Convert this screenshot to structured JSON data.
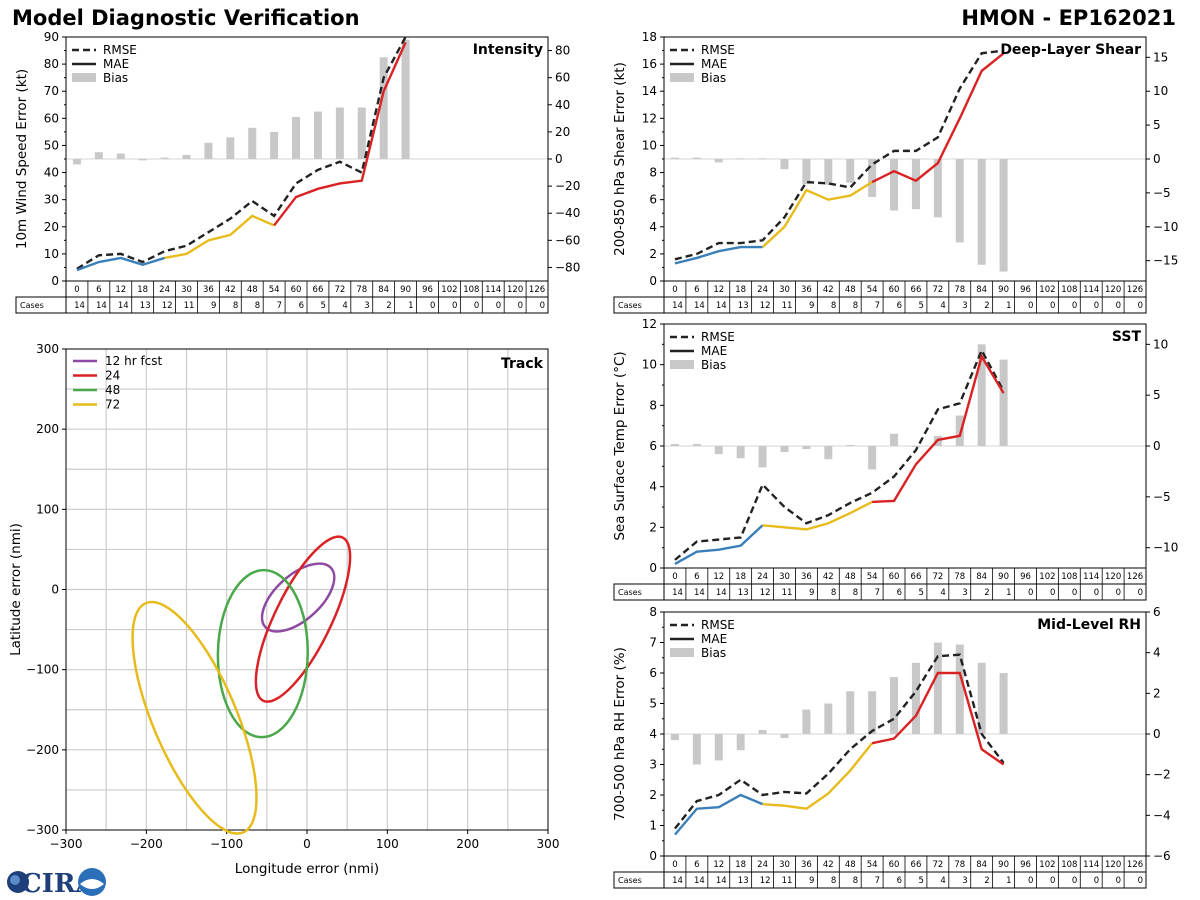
{
  "header": {
    "title": "Model Diagnostic Verification",
    "storm": "HMON - EP162021"
  },
  "logo": {
    "text": "CIRA"
  },
  "legend_labels": {
    "rmse": "RMSE",
    "mae": "MAE",
    "bias": "Bias"
  },
  "colors": {
    "blue": "#3a7fba",
    "yellow": "#e8bb1c",
    "red": "#d92224",
    "rmse": "#222222",
    "bias": "#c8c8c8",
    "grid": "#cccccc",
    "purple": "#8e4aa2",
    "green": "#4aa84a"
  },
  "lead_times": [
    0,
    6,
    12,
    18,
    24,
    30,
    36,
    42,
    48,
    54,
    60,
    66,
    72,
    78,
    84,
    90,
    96,
    102,
    108,
    114,
    120,
    126
  ],
  "cases": [
    14,
    14,
    14,
    13,
    12,
    11,
    9,
    8,
    8,
    7,
    6,
    5,
    4,
    3,
    2,
    1,
    0,
    0,
    0,
    0,
    0,
    0
  ],
  "cases_label": "Cases",
  "chart_data": [
    {
      "type": "line",
      "id": "intensity",
      "title": "Intensity",
      "ylabel": "10m Wind Speed Error (kt)",
      "ylim": [
        0,
        90
      ],
      "yticks": [
        0,
        10,
        20,
        30,
        40,
        50,
        60,
        70,
        80,
        90
      ],
      "y2lim": [
        -90,
        90
      ],
      "y2ticks": [
        -80,
        -60,
        -40,
        -20,
        0,
        20,
        40,
        60,
        80
      ],
      "x": [
        0,
        6,
        12,
        18,
        24,
        30,
        36,
        42,
        48,
        54,
        60,
        66,
        72,
        78,
        84,
        90
      ],
      "rmse": [
        4.5,
        9.5,
        10,
        7,
        11,
        13,
        18,
        23,
        29.5,
        24,
        36,
        41,
        44,
        40,
        75,
        90
      ],
      "mae": [
        4,
        7,
        8.5,
        6,
        8.5,
        10,
        15,
        17,
        24,
        20.5,
        31,
        34,
        36,
        37,
        70,
        88
      ],
      "bias": [
        -4,
        5,
        4,
        -1,
        1,
        3,
        12,
        16,
        23,
        20,
        31,
        35,
        38,
        38,
        75,
        88
      ]
    },
    {
      "type": "line",
      "id": "shear",
      "title": "Deep-Layer Shear",
      "ylabel": "200-850 hPa Shear Error (kt)",
      "ylim": [
        0,
        18
      ],
      "yticks": [
        0,
        2,
        4,
        6,
        8,
        10,
        12,
        14,
        16,
        18
      ],
      "y2lim": [
        -18,
        18
      ],
      "y2ticks": [
        -15,
        -10,
        -5,
        0,
        5,
        10,
        15
      ],
      "x": [
        0,
        6,
        12,
        18,
        24,
        30,
        36,
        42,
        48,
        54,
        60,
        66,
        72,
        78,
        84,
        90
      ],
      "rmse": [
        1.6,
        2,
        2.8,
        2.8,
        3,
        4.7,
        7.3,
        7.2,
        6.9,
        8.6,
        9.6,
        9.6,
        10.6,
        14.2,
        16.8,
        17
      ],
      "mae": [
        1.3,
        1.7,
        2.2,
        2.5,
        2.5,
        4,
        6.7,
        6,
        6.3,
        7.3,
        8.1,
        7.4,
        8.7,
        12,
        15.5,
        16.8
      ],
      "bias": [
        0.2,
        0.2,
        -0.5,
        0.1,
        0.1,
        -1.5,
        -3.7,
        -3.8,
        -3.5,
        -5.6,
        -7.6,
        -7.4,
        -8.6,
        -12.3,
        -15.6,
        -16.6
      ]
    },
    {
      "type": "line",
      "id": "sst",
      "title": "SST",
      "ylabel": "Sea Surface Temp Error (°C)",
      "ylim": [
        0,
        12
      ],
      "yticks": [
        0,
        2,
        4,
        6,
        8,
        10,
        12
      ],
      "y2lim": [
        -12,
        12
      ],
      "y2ticks": [
        -10,
        -5,
        0,
        5,
        10
      ],
      "x": [
        0,
        6,
        12,
        18,
        24,
        30,
        36,
        42,
        48,
        54,
        60,
        66,
        72,
        78,
        84,
        90
      ],
      "rmse": [
        0.4,
        1.3,
        1.4,
        1.5,
        4.1,
        3,
        2.2,
        2.6,
        3.2,
        3.7,
        4.5,
        5.8,
        7.8,
        8.1,
        10.7,
        8.7
      ],
      "mae": [
        0.2,
        0.8,
        0.9,
        1.1,
        2.1,
        2,
        1.9,
        2.2,
        2.7,
        3.25,
        3.3,
        5.1,
        6.3,
        6.5,
        10.4,
        8.6
      ],
      "bias": [
        0.2,
        0.2,
        -0.8,
        -1.2,
        -2.1,
        -0.6,
        -0.3,
        -1.3,
        0.1,
        -2.3,
        1.2,
        0,
        1,
        3,
        10,
        8.5
      ]
    },
    {
      "type": "line",
      "id": "rh",
      "title": "Mid-Level RH",
      "ylabel": "700-500 hPa RH Error (%)",
      "ylim": [
        0,
        8
      ],
      "yticks": [
        0,
        1,
        2,
        3,
        4,
        5,
        6,
        7,
        8
      ],
      "y2lim": [
        -6,
        6
      ],
      "y2ticks": [
        -6,
        -4,
        -2,
        0,
        2,
        4,
        6
      ],
      "x": [
        0,
        6,
        12,
        18,
        24,
        30,
        36,
        42,
        48,
        54,
        60,
        66,
        72,
        78,
        84,
        90
      ],
      "rmse": [
        0.9,
        1.8,
        2,
        2.5,
        2,
        2.1,
        2.05,
        2.7,
        3.5,
        4.1,
        4.5,
        5.4,
        6.55,
        6.6,
        4,
        3.05
      ],
      "mae": [
        0.7,
        1.55,
        1.6,
        2,
        1.7,
        1.65,
        1.55,
        2.05,
        2.8,
        3.7,
        3.85,
        4.6,
        6,
        6,
        3.5,
        3
      ],
      "bias": [
        -0.3,
        -1.5,
        -1.3,
        -0.8,
        0.2,
        -0.2,
        1.2,
        1.5,
        2.1,
        2.1,
        2.8,
        3.5,
        4.5,
        4.4,
        3.5,
        3
      ]
    },
    {
      "type": "scatter",
      "id": "track",
      "title": "Track",
      "xlabel": "Longitude error (nmi)",
      "ylabel": "Latitude error (nmi)",
      "xlim": [
        -300,
        300
      ],
      "ylim": [
        -300,
        300
      ],
      "xticks": [
        -300,
        -200,
        -100,
        0,
        100,
        200,
        300
      ],
      "yticks": [
        -300,
        -200,
        -100,
        0,
        100,
        200,
        300
      ],
      "legend": [
        "12 hr fcst",
        "24",
        "48",
        "72"
      ],
      "ellipses": [
        {
          "name": "12 hr fcst",
          "cx": -11,
          "cy": -10,
          "rx": 55,
          "ry": 28,
          "angle": 42
        },
        {
          "name": "24",
          "cx": -5,
          "cy": -37,
          "rx": 113,
          "ry": 35,
          "angle": 64
        },
        {
          "name": "48",
          "cx": -55,
          "cy": -80,
          "rx": 104,
          "ry": 56,
          "angle": 89
        },
        {
          "name": "72",
          "cx": -140,
          "cy": -160,
          "rx": 155,
          "ry": 52,
          "angle": 113
        }
      ]
    }
  ]
}
